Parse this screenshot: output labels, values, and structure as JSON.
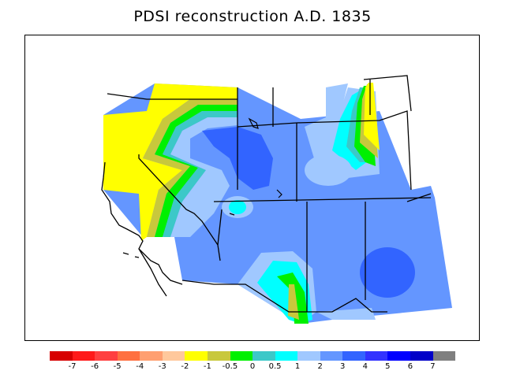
{
  "title": "PDSI reconstruction A.D. 1835",
  "legend": {
    "colors": [
      "#d70000",
      "#ff1a1a",
      "#ff4040",
      "#ff7040",
      "#ff9f70",
      "#ffc89c",
      "#ffff00",
      "#c8c83c",
      "#00f000",
      "#3cc8c8",
      "#00ffff",
      "#a0c8ff",
      "#6496ff",
      "#3264ff",
      "#3232ff",
      "#0000ff",
      "#0000c8",
      "#7f7f7f"
    ],
    "labels": [
      "-7",
      "-6",
      "-5",
      "-4",
      "-3",
      "-2",
      "-1",
      "-0.5",
      "0",
      "0.5",
      "1",
      "2",
      "3",
      "4",
      "5",
      "6",
      "7"
    ]
  }
}
